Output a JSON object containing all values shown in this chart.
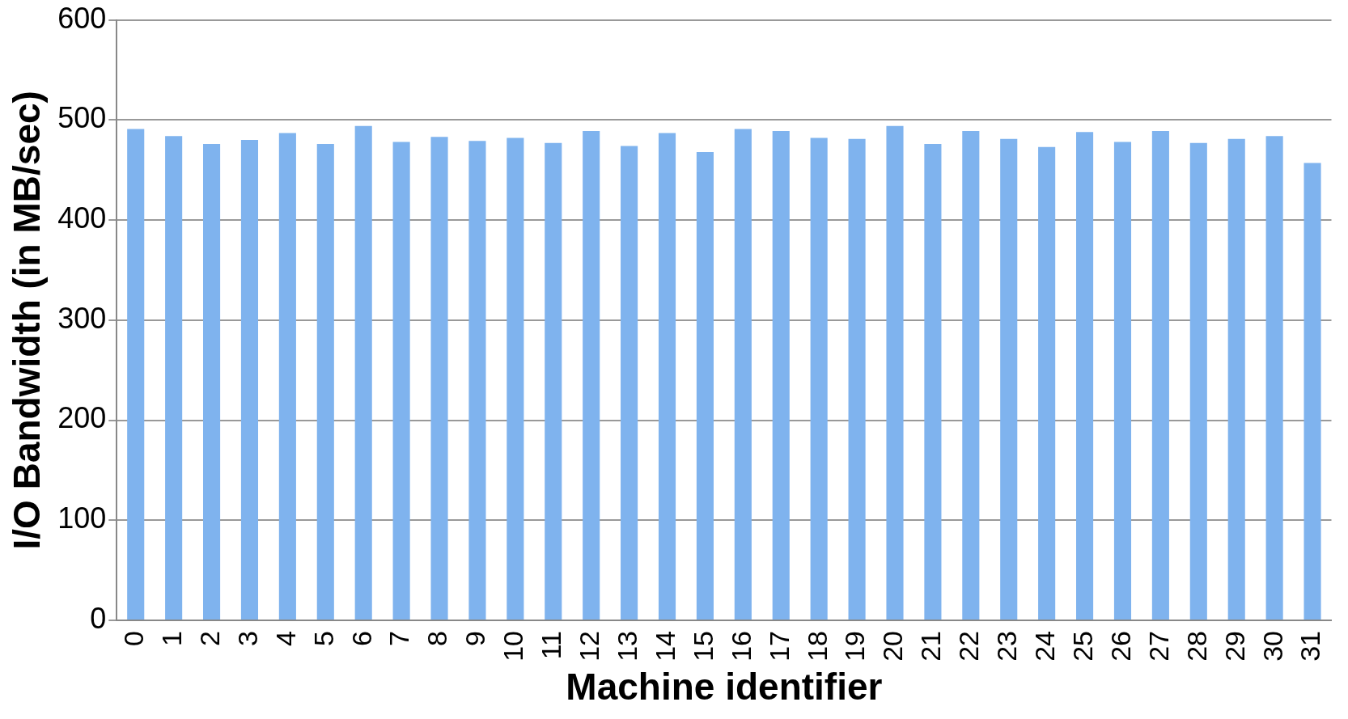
{
  "chart_data": {
    "type": "bar",
    "xlabel": "Machine identifier",
    "ylabel": "I/O Bandwidth (in MB/sec)",
    "categories": [
      "0",
      "1",
      "2",
      "3",
      "4",
      "5",
      "6",
      "7",
      "8",
      "9",
      "10",
      "11",
      "12",
      "13",
      "14",
      "15",
      "16",
      "17",
      "18",
      "19",
      "20",
      "21",
      "22",
      "23",
      "24",
      "25",
      "26",
      "27",
      "28",
      "29",
      "30",
      "31"
    ],
    "values": [
      491,
      484,
      476,
      480,
      487,
      476,
      494,
      478,
      483,
      479,
      482,
      477,
      489,
      474,
      487,
      468,
      491,
      489,
      482,
      481,
      494,
      476,
      489,
      481,
      473,
      488,
      478,
      489,
      477,
      481,
      484,
      457
    ],
    "color": "#7fb3ee",
    "ylim": [
      0,
      600
    ],
    "yticks": [
      0,
      100,
      200,
      300,
      400,
      500,
      600
    ],
    "grid": "y",
    "legend": false
  }
}
